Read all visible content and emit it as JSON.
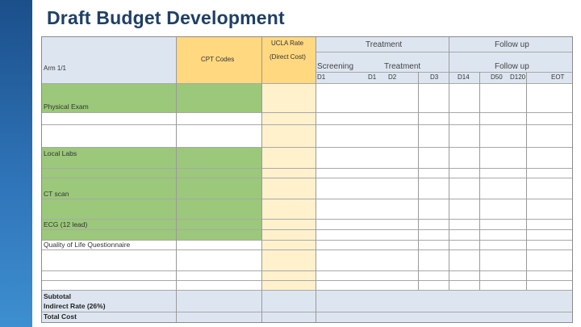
{
  "slide": {
    "title": "Draft Budget Development"
  },
  "sheet": {
    "arm_label": "Arm 1/1",
    "cpt_header": "CPT Codes",
    "rate_header_line1": "UCLA Rate",
    "rate_header_line2": "(Direct Cost)",
    "group_treatment": "Treatment",
    "group_followup": "Follow up",
    "sub_screening": "Screening",
    "sub_treatment": "Treatment",
    "sub_followup": "Follow up",
    "days": [
      "D1",
      "D1",
      "D2",
      "D3",
      "D14",
      "D50",
      "D120",
      "EOT"
    ],
    "procedures": [
      "Physical Exam",
      "Local Labs",
      "CT scan",
      "ECG (12 lead)",
      "Quality of Life Questionnaire"
    ],
    "summary": [
      "Subtotal",
      "Indirect Rate (26%)",
      "Total Cost"
    ]
  },
  "colors": {
    "header_blue": "#dde6f0",
    "rate_header": "#ffd880",
    "rate_column": "#fff1cc",
    "procedure_green": "#9bc87a",
    "title_navy": "#1f3f66",
    "side_band": "#2f74b8"
  }
}
